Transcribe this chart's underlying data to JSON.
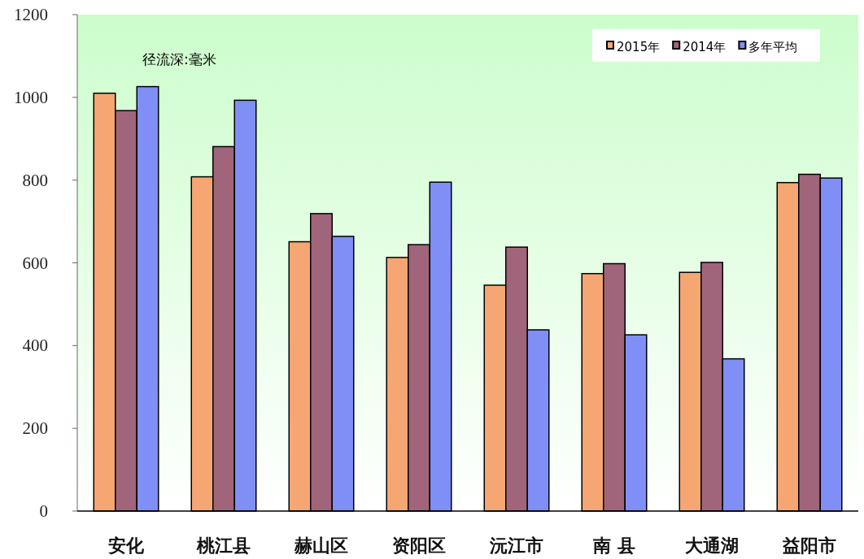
{
  "chart_data": {
    "type": "bar",
    "categories": [
      "安化",
      "桃江县",
      "赫山区",
      "资阳区",
      "沅江市",
      "南 县",
      "大通湖",
      "益阳市"
    ],
    "series": [
      {
        "name": "2015年",
        "color": "#f6a673",
        "values": [
          1010,
          808,
          651,
          613,
          546,
          574,
          577,
          794
        ]
      },
      {
        "name": "2014年",
        "color": "#a0657a",
        "values": [
          968,
          881,
          719,
          644,
          638,
          598,
          601,
          814
        ]
      },
      {
        "name": "多年平均",
        "color": "#7f8ff5",
        "values": [
          1026,
          993,
          664,
          795,
          438,
          426,
          368,
          805
        ]
      }
    ],
    "annotations": [
      "径流深:毫米"
    ],
    "ylim": [
      0,
      1200
    ],
    "yticks": [
      0,
      200,
      400,
      600,
      800,
      1000,
      1200
    ],
    "legend": "top right"
  }
}
